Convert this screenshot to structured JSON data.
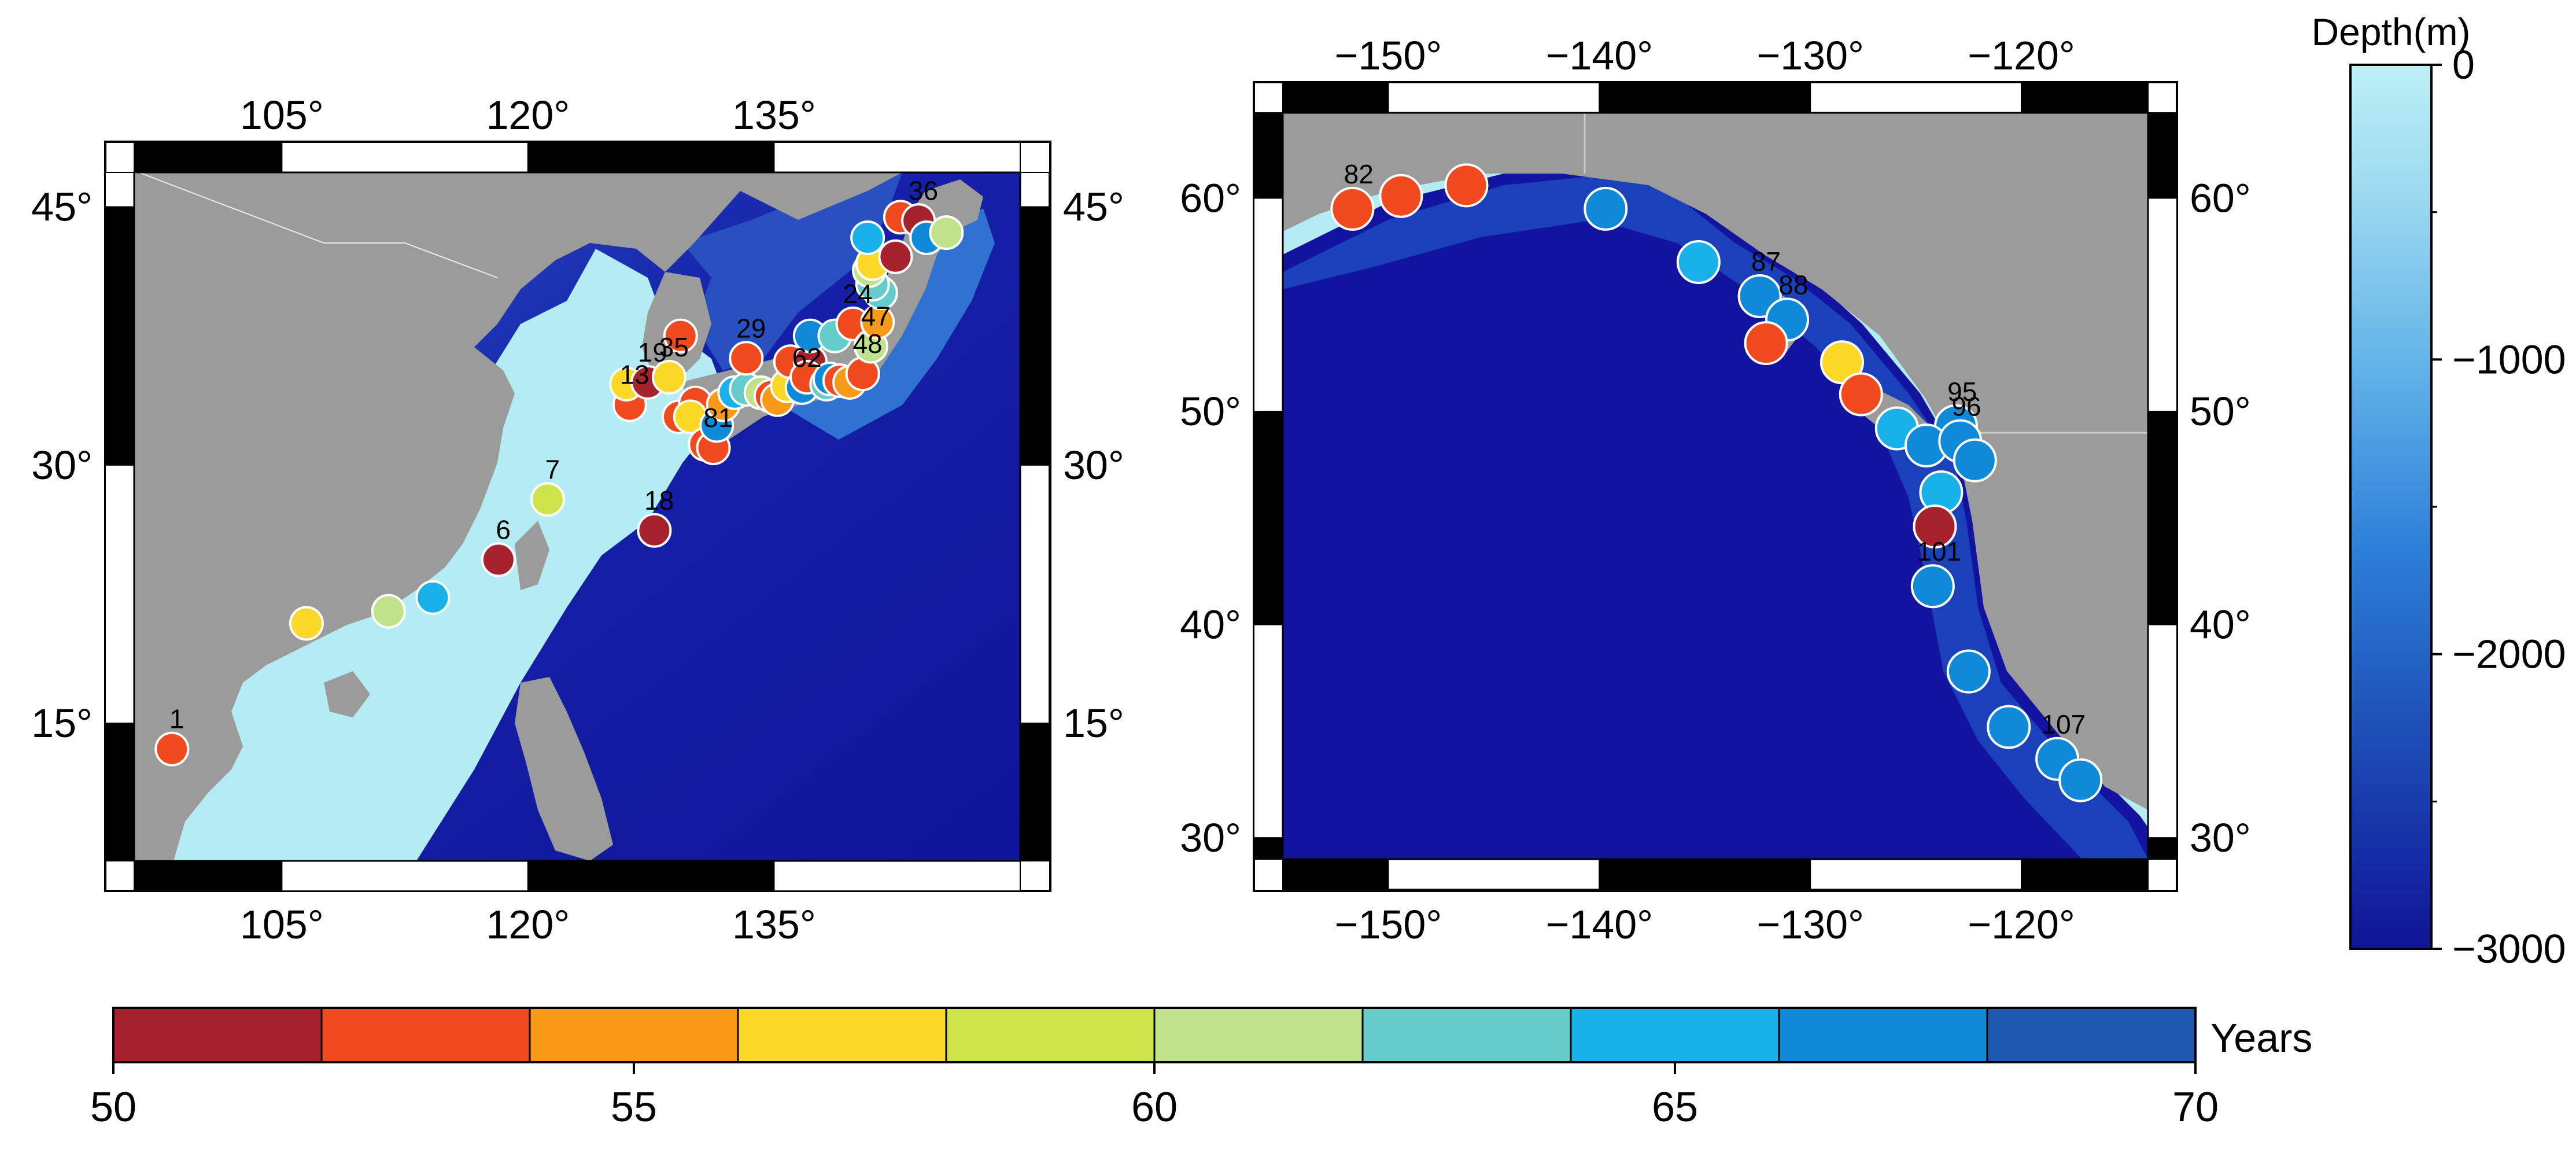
{
  "left_map": {
    "lon_range": [
      96,
      150
    ],
    "lat_range": [
      7,
      47
    ],
    "top_lon_labels": [
      "105°",
      "120°",
      "135°"
    ],
    "bottom_lon_labels": [
      "105°",
      "120°",
      "135°"
    ],
    "left_lat_labels": [
      "15°",
      "30°",
      "45°"
    ],
    "right_lat_labels": [
      "15°",
      "30°",
      "45°"
    ],
    "lon_ticks": [
      105,
      120,
      135
    ],
    "lat_ticks": [
      15,
      30,
      45
    ],
    "stations": [
      {
        "id": "1",
        "lon": 98.3,
        "lat": 13.5,
        "years": 53
      },
      {
        "id": "",
        "lon": 106.5,
        "lat": 20.8,
        "years": 57
      },
      {
        "id": "",
        "lon": 111.5,
        "lat": 21.5,
        "years": 60
      },
      {
        "id": "",
        "lon": 114.2,
        "lat": 22.3,
        "years": 65
      },
      {
        "id": "6",
        "lon": 118.2,
        "lat": 24.5,
        "years": 51
      },
      {
        "id": "7",
        "lon": 121.2,
        "lat": 28.0,
        "years": 59
      },
      {
        "id": "18",
        "lon": 127.7,
        "lat": 26.2,
        "years": 51
      },
      {
        "id": "13",
        "lon": 126.2,
        "lat": 33.5,
        "years": 53
      },
      {
        "id": "",
        "lon": 126.0,
        "lat": 34.7,
        "years": 57
      },
      {
        "id": "19",
        "lon": 127.3,
        "lat": 34.8,
        "years": 51
      },
      {
        "id": "35",
        "lon": 128.6,
        "lat": 35.1,
        "years": 56
      },
      {
        "id": "",
        "lon": 129.3,
        "lat": 37.5,
        "years": 53
      },
      {
        "id": "",
        "lon": 129.2,
        "lat": 32.8,
        "years": 53
      },
      {
        "id": "",
        "lon": 130.2,
        "lat": 33.6,
        "years": 53
      },
      {
        "id": "",
        "lon": 129.9,
        "lat": 32.8,
        "years": 56
      },
      {
        "id": "",
        "lon": 130.8,
        "lat": 31.2,
        "years": 53
      },
      {
        "id": "81",
        "lon": 131.3,
        "lat": 31.0,
        "years": 53
      },
      {
        "id": "",
        "lon": 131.5,
        "lat": 32.3,
        "years": 66
      },
      {
        "id": "",
        "lon": 131.9,
        "lat": 33.5,
        "years": 54
      },
      {
        "id": "",
        "lon": 132.6,
        "lat": 34.2,
        "years": 65
      },
      {
        "id": "",
        "lon": 133.3,
        "lat": 34.4,
        "years": 62
      },
      {
        "id": "29",
        "lon": 133.3,
        "lat": 36.2,
        "years": 53
      },
      {
        "id": "",
        "lon": 134.2,
        "lat": 34.2,
        "years": 61
      },
      {
        "id": "",
        "lon": 134.8,
        "lat": 34.0,
        "years": 52
      },
      {
        "id": "",
        "lon": 135.2,
        "lat": 33.8,
        "years": 54
      },
      {
        "id": "",
        "lon": 135.8,
        "lat": 34.6,
        "years": 57
      },
      {
        "id": "",
        "lon": 136.0,
        "lat": 36.0,
        "years": 53
      },
      {
        "id": "62",
        "lon": 136.7,
        "lat": 34.5,
        "years": 66
      },
      {
        "id": "",
        "lon": 137.2,
        "lat": 36.0,
        "years": 51
      },
      {
        "id": "",
        "lon": 137.0,
        "lat": 35.1,
        "years": 53
      },
      {
        "id": "",
        "lon": 138.2,
        "lat": 34.7,
        "years": 62
      },
      {
        "id": "",
        "lon": 138.4,
        "lat": 35.0,
        "years": 66
      },
      {
        "id": "",
        "lon": 139.0,
        "lat": 34.9,
        "years": 53
      },
      {
        "id": "",
        "lon": 139.6,
        "lat": 34.8,
        "years": 54
      },
      {
        "id": "",
        "lon": 137.2,
        "lat": 37.5,
        "years": 66
      },
      {
        "id": "",
        "lon": 138.7,
        "lat": 37.5,
        "years": 63
      },
      {
        "id": "24",
        "lon": 139.8,
        "lat": 38.2,
        "years": 52
      },
      {
        "id": "48",
        "lon": 140.4,
        "lat": 35.3,
        "years": 53
      },
      {
        "id": "47",
        "lon": 140.9,
        "lat": 36.9,
        "years": 60
      },
      {
        "id": "",
        "lon": 141.3,
        "lat": 38.3,
        "years": 55
      },
      {
        "id": "",
        "lon": 141.5,
        "lat": 40.0,
        "years": 63
      },
      {
        "id": "",
        "lon": 141.0,
        "lat": 40.5,
        "years": 62
      },
      {
        "id": "",
        "lon": 140.8,
        "lat": 41.3,
        "years": 60
      },
      {
        "id": "",
        "lon": 141.0,
        "lat": 41.7,
        "years": 57
      },
      {
        "id": "",
        "lon": 140.7,
        "lat": 43.2,
        "years": 64
      },
      {
        "id": "",
        "lon": 142.4,
        "lat": 42.1,
        "years": 51
      },
      {
        "id": "",
        "lon": 142.7,
        "lat": 44.4,
        "years": 53
      },
      {
        "id": "36",
        "lon": 143.8,
        "lat": 44.2,
        "years": 51
      },
      {
        "id": "",
        "lon": 144.3,
        "lat": 43.2,
        "years": 66
      },
      {
        "id": "",
        "lon": 145.5,
        "lat": 43.5,
        "years": 61
      }
    ]
  },
  "right_map": {
    "lon_range": [
      -155,
      -114
    ],
    "lat_range": [
      29,
      64
    ],
    "top_lon_labels": [
      "−150°",
      "−140°",
      "−130°",
      "−120°"
    ],
    "bottom_lon_labels": [
      "−150°",
      "−140°",
      "−130°",
      "−120°"
    ],
    "left_lat_labels": [
      "30°",
      "40°",
      "50°",
      "60°"
    ],
    "right_lat_labels": [
      "30°",
      "40°",
      "50°",
      "60°"
    ],
    "lon_ticks": [
      -150,
      -140,
      -130,
      -120
    ],
    "lat_ticks": [
      30,
      40,
      50,
      60
    ],
    "stations": [
      {
        "id": "82",
        "lon": -151.7,
        "lat": 59.5,
        "years": 53
      },
      {
        "id": "",
        "lon": -149.4,
        "lat": 60.1,
        "years": 53
      },
      {
        "id": "",
        "lon": -146.3,
        "lat": 60.6,
        "years": 53
      },
      {
        "id": "",
        "lon": -139.7,
        "lat": 59.5,
        "years": 66
      },
      {
        "id": "",
        "lon": -135.3,
        "lat": 57.0,
        "years": 65
      },
      {
        "id": "87",
        "lon": -132.4,
        "lat": 55.4,
        "years": 66
      },
      {
        "id": "88",
        "lon": -131.1,
        "lat": 54.3,
        "years": 66
      },
      {
        "id": "",
        "lon": -132.1,
        "lat": 53.2,
        "years": 53
      },
      {
        "id": "",
        "lon": -128.5,
        "lat": 52.3,
        "years": 57
      },
      {
        "id": "",
        "lon": -127.6,
        "lat": 50.8,
        "years": 53
      },
      {
        "id": "",
        "lon": -125.9,
        "lat": 49.2,
        "years": 65
      },
      {
        "id": "95",
        "lon": -123.1,
        "lat": 49.3,
        "years": 66
      },
      {
        "id": "",
        "lon": -124.5,
        "lat": 48.4,
        "years": 66
      },
      {
        "id": "96",
        "lon": -122.9,
        "lat": 48.6,
        "years": 66
      },
      {
        "id": "",
        "lon": -122.2,
        "lat": 47.7,
        "years": 66
      },
      {
        "id": "",
        "lon": -123.8,
        "lat": 46.2,
        "years": 65
      },
      {
        "id": "",
        "lon": -124.1,
        "lat": 44.6,
        "years": 51
      },
      {
        "id": "101",
        "lon": -124.2,
        "lat": 41.8,
        "years": 66
      },
      {
        "id": "",
        "lon": -122.5,
        "lat": 37.8,
        "years": 66
      },
      {
        "id": "",
        "lon": -120.6,
        "lat": 35.2,
        "years": 66
      },
      {
        "id": "107",
        "lon": -118.3,
        "lat": 33.7,
        "years": 66
      },
      {
        "id": "",
        "lon": -117.2,
        "lat": 32.7,
        "years": 66
      }
    ]
  },
  "depth_colorbar": {
    "title": "Depth(m)",
    "range": [
      -3000,
      0
    ],
    "tick_labels": [
      "0",
      "−1000",
      "−2000",
      "−3000"
    ],
    "tick_values": [
      0,
      -1000,
      -2000,
      -3000
    ]
  },
  "years_colorbar": {
    "label": "Years",
    "range": [
      50,
      70
    ],
    "tick_labels": [
      "50",
      "55",
      "60",
      "65",
      "70"
    ],
    "tick_values": [
      50,
      55,
      60,
      65,
      70
    ],
    "bins": [
      {
        "from": 50,
        "to": 52,
        "color": "#a5232d"
      },
      {
        "from": 52,
        "to": 54,
        "color": "#f04a1e"
      },
      {
        "from": 54,
        "to": 56,
        "color": "#f89a17"
      },
      {
        "from": 56,
        "to": 58,
        "color": "#fdd927"
      },
      {
        "from": 58,
        "to": 60,
        "color": "#cde54a"
      },
      {
        "from": 60,
        "to": 62,
        "color": "#bfe28a"
      },
      {
        "from": 62,
        "to": 64,
        "color": "#66cccb"
      },
      {
        "from": 64,
        "to": 66,
        "color": "#18b1ea"
      },
      {
        "from": 66,
        "to": 68,
        "color": "#0f8ad8"
      },
      {
        "from": 68,
        "to": 70,
        "color": "#1e58b0"
      }
    ]
  },
  "colors": {
    "land": "#9b9b9b",
    "shelf": "#b4ecf3",
    "deep": "#1214a0",
    "frame_black": "#000000"
  }
}
